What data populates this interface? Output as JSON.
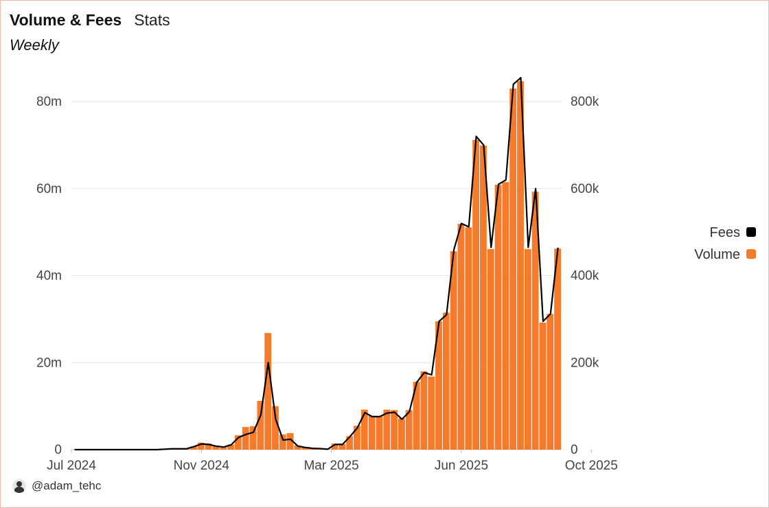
{
  "header": {
    "title": "Volume & Fees",
    "tab": "Stats",
    "period": "Weekly"
  },
  "author": {
    "handle": "@adam_tehc",
    "icon": "avatar-icon"
  },
  "chart_data": {
    "type": "bar",
    "x_tick_labels": [
      "Jul 2024",
      "Nov 2024",
      "Mar 2025",
      "Jun 2025",
      "Oct 2025"
    ],
    "x_tick_positions": [
      0,
      17.5,
      35,
      52.5,
      70
    ],
    "y_left": {
      "ticks": [
        0,
        20000000,
        40000000,
        60000000,
        80000000
      ],
      "labels": [
        "0",
        "20m",
        "40m",
        "60m",
        "80m"
      ],
      "range": [
        0,
        86000000
      ]
    },
    "y_right": {
      "ticks": [
        0,
        200000,
        400000,
        600000,
        800000
      ],
      "labels": [
        "0",
        "200k",
        "400k",
        "600k",
        "800k"
      ],
      "range": [
        0,
        860000
      ]
    },
    "grid": true,
    "legend": {
      "position": "right",
      "entries": [
        {
          "label": "Fees",
          "color": "#000000"
        },
        {
          "label": "Volume",
          "color": "#f57b2b"
        }
      ]
    },
    "colors": {
      "volume": "#f57b2b",
      "fees": "#000000"
    },
    "series": [
      {
        "name": "Volume",
        "axis": "left",
        "type": "bar",
        "values": [
          0,
          0,
          0,
          0,
          0,
          0,
          0,
          0,
          0,
          0,
          0,
          0,
          100000,
          200000,
          200000,
          200000,
          700000,
          1600000,
          1400000,
          900000,
          700000,
          1200000,
          3300000,
          5200000,
          5400000,
          11200000,
          26800000,
          10000000,
          3500000,
          3800000,
          1000000,
          500000,
          300000,
          300000,
          100000,
          1400000,
          1300000,
          3100000,
          5500000,
          9200000,
          7800000,
          7700000,
          9200000,
          9100000,
          7200000,
          9100000,
          15600000,
          18000000,
          16800000,
          29500000,
          31500000,
          45600000,
          51900000,
          51100000,
          71200000,
          69900000,
          46100000,
          60900000,
          61500000,
          83000000,
          84700000,
          46100000,
          59300000,
          29200000,
          31200000,
          46200000
        ]
      },
      {
        "name": "Fees",
        "axis": "right",
        "type": "line",
        "values": [
          0,
          0,
          0,
          0,
          0,
          0,
          0,
          0,
          0,
          0,
          0,
          0,
          1000,
          2000,
          2000,
          2000,
          7000,
          13000,
          12000,
          8000,
          6000,
          11000,
          28000,
          35000,
          40000,
          80000,
          200000,
          70000,
          22000,
          24000,
          8000,
          5000,
          3000,
          2500,
          1000,
          12000,
          12000,
          30000,
          50000,
          85000,
          76000,
          76000,
          84000,
          86000,
          70000,
          87000,
          155000,
          177000,
          172000,
          295000,
          310000,
          460000,
          520000,
          512000,
          720000,
          700000,
          465000,
          610000,
          620000,
          840000,
          855000,
          465000,
          600000,
          295000,
          312000,
          463000
        ]
      }
    ]
  }
}
